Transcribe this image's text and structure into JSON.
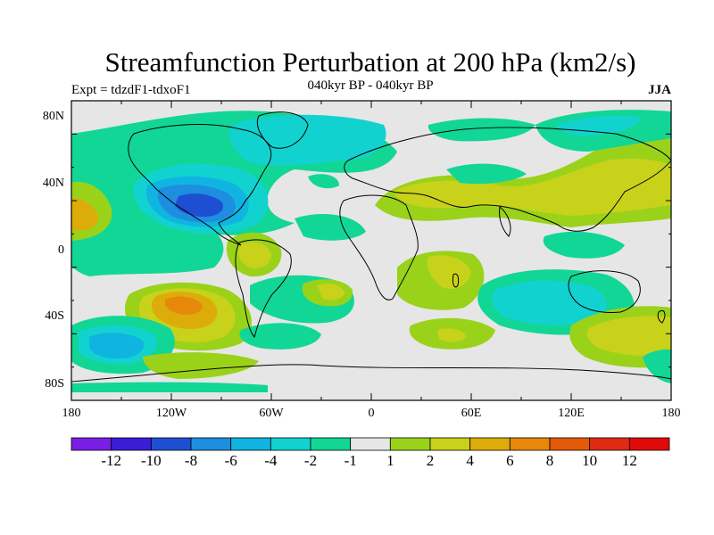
{
  "title": "Streamfunction Perturbation at 200 hPa (km2/s)",
  "experiment": "Expt = tdzdF1-tdxoF1",
  "period": "040kyr BP - 040kyr BP",
  "season": "JJA",
  "lat_axis": [
    "80N",
    "40N",
    "0",
    "40S",
    "80S"
  ],
  "lon_axis": [
    "180",
    "120W",
    "60W",
    "0",
    "60E",
    "120E",
    "180"
  ],
  "colorbar": {
    "labels": [
      "-12",
      "-10",
      "-8",
      "-6",
      "-4",
      "-2",
      "-1",
      "1",
      "2",
      "4",
      "6",
      "8",
      "10",
      "12"
    ],
    "colors": [
      "#7a1ee6",
      "#3a1ed6",
      "#1e4fd2",
      "#1e8ee0",
      "#10b4e0",
      "#12d2d0",
      "#12d696",
      "#e6e6e6",
      "#9ad21a",
      "#c8d21a",
      "#dcac0a",
      "#e6880a",
      "#e25a0a",
      "#e02a14",
      "#e00a0a"
    ]
  },
  "palette": {
    "neutral": "#e6e6e6",
    "neg1": "#12d696",
    "neg2": "#12d2d0",
    "neg3": "#10b4e0",
    "neg4": "#1e8ee0",
    "neg5": "#1e4fd2",
    "pos1": "#9ad21a",
    "pos2": "#c8d21a",
    "pos3": "#dcac0a",
    "pos4": "#e6880a"
  }
}
